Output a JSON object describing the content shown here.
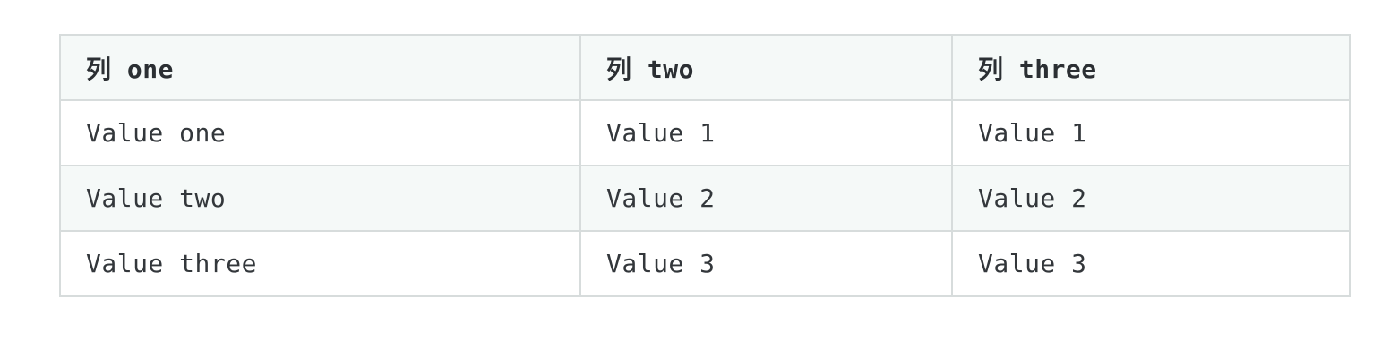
{
  "table": {
    "headers": [
      "列 one",
      "列 two",
      "列 three"
    ],
    "rows": [
      [
        "Value one",
        "Value 1",
        "Value 1"
      ],
      [
        "Value two",
        "Value 2",
        "Value 2"
      ],
      [
        "Value three",
        "Value 3",
        "Value 3"
      ]
    ]
  },
  "colors": {
    "border": "#d7dcdc",
    "header_bg": "#f5f9f8",
    "alt_row_bg": "#f5f9f8",
    "text": "#2f3337"
  }
}
